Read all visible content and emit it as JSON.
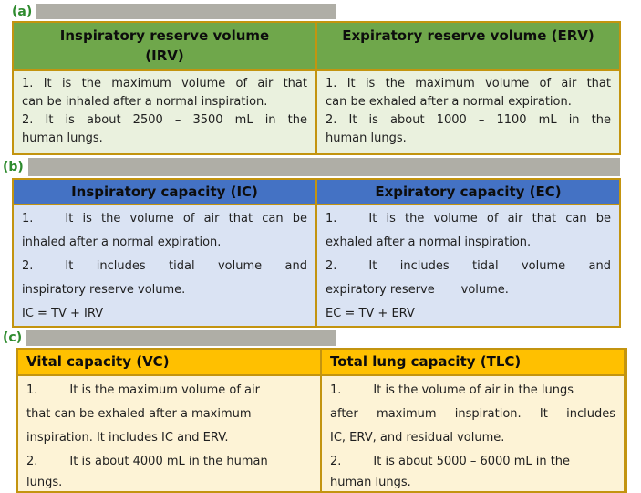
{
  "colors": {
    "page_bg": "#ffffff",
    "bar_gray": "#afaea6",
    "label_green": "#2e8b2e",
    "border_gold": "#c3940f",
    "header_text": "#0d0d0d",
    "body_text": "#1f1f1f",
    "table_a_header_bg": "#6fa74b",
    "table_a_body_bg": "#eaf1de",
    "table_b_header_bg": "#4472c4",
    "table_b_body_bg": "#dae3f3",
    "table_c_header_bg": "#ffc000",
    "table_c_body_bg": "#fdf3d6"
  },
  "sections": [
    {
      "label": "(a)",
      "table": {
        "columns": [
          {
            "header_lines": [
              "Inspiratory reserve volume",
              "(IRV)"
            ],
            "lines": [
              {
                "text": "1. It is the maximum volume of air that",
                "justify": true
              },
              {
                "text": "can be inhaled after a normal inspiration.",
                "justify": false
              },
              {
                "text": "2. It is about 2500 – 3500 mL in the",
                "justify": true
              },
              {
                "text": "human lungs.",
                "justify": false
              }
            ]
          },
          {
            "header_lines": [
              "Expiratory reserve volume (ERV)",
              ""
            ],
            "lines": [
              {
                "text": "1. It is the maximum volume of air that",
                "justify": true
              },
              {
                "text": "can be exhaled after a normal expiration.",
                "justify": false
              },
              {
                "text": "2. It is about 1000 – 1100 mL in the",
                "justify": true
              },
              {
                "text": "human lungs.",
                "justify": false
              }
            ]
          }
        ]
      }
    },
    {
      "label": "(b)",
      "table": {
        "columns": [
          {
            "header_lines": [
              "Inspiratory capacity (IC)"
            ],
            "lines": [
              {
                "num": "1.",
                "text": "It is the volume of air that can be",
                "justify": true
              },
              {
                "text": "inhaled after a normal expiration.",
                "justify": false
              },
              {
                "num": "2.",
                "text": "It includes tidal volume and",
                "justify": true
              },
              {
                "text": "inspiratory reserve volume.",
                "justify": false
              },
              {
                "text": "IC = TV + IRV",
                "justify": false
              }
            ]
          },
          {
            "header_lines": [
              "Expiratory capacity (EC)"
            ],
            "lines": [
              {
                "num": "1.",
                "text": "It is the volume of air that can be",
                "justify": true
              },
              {
                "text": "exhaled after a normal inspiration.",
                "justify": false
              },
              {
                "num": "2.",
                "text": "It includes tidal volume and",
                "justify": true
              },
              {
                "text": "expiratory reserve       volume.",
                "justify": false
              },
              {
                "text": "EC = TV + ERV",
                "justify": false
              }
            ]
          }
        ]
      }
    },
    {
      "label": "(c)",
      "table": {
        "columns": [
          {
            "header_lines": [
              "Vital capacity (VC)"
            ],
            "lines": [
              {
                "num": "1.",
                "text": "It is the maximum volume of air",
                "justify": false
              },
              {
                "text": "that can be exhaled after a maximum",
                "justify": false
              },
              {
                "text": "inspiration. It includes IC and ERV.",
                "justify": false
              },
              {
                "num": "2.",
                "text": "It is about 4000 mL in the human",
                "justify": false
              },
              {
                "text": "lungs.",
                "justify": false,
                "tight": true
              }
            ]
          },
          {
            "header_lines": [
              "Total lung capacity (TLC)"
            ],
            "lines": [
              {
                "num": "1.",
                "text": "It is the volume of air in the lungs",
                "justify": false
              },
              {
                "text": "after maximum inspiration. It includes",
                "justify": true
              },
              {
                "text": "IC, ERV, and residual volume.",
                "justify": false
              },
              {
                "num": "2.",
                "text": "It is about 5000 – 6000 mL in the",
                "justify": false
              },
              {
                "text": "human lungs.",
                "justify": false,
                "tight": true
              }
            ]
          }
        ]
      }
    }
  ]
}
